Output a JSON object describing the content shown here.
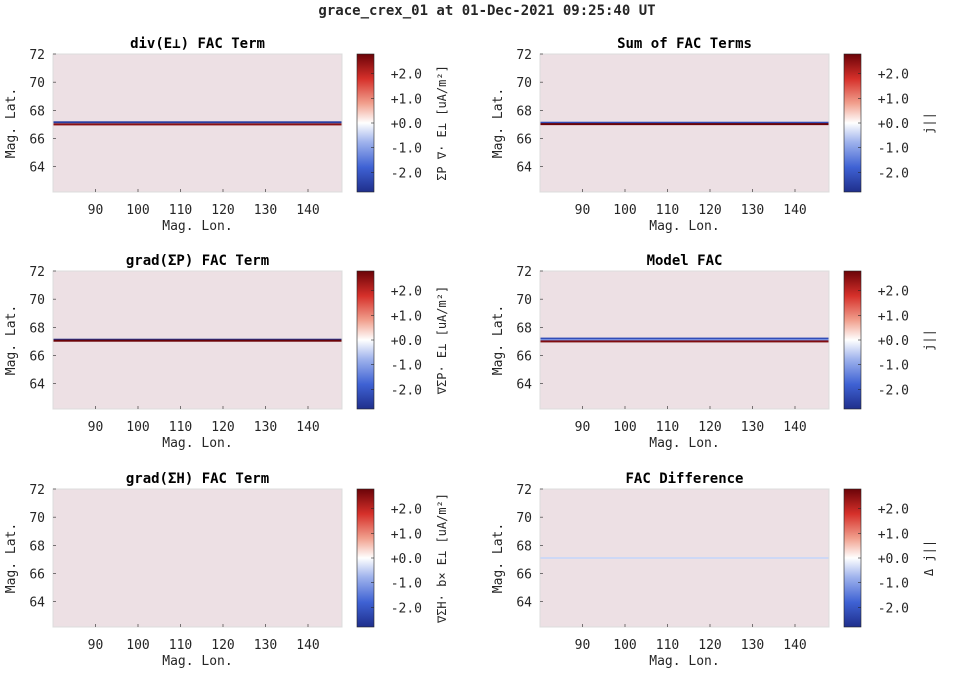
{
  "figure_title": "grace_crex_01 at 01-Dec-2021 09:25:40 UT",
  "colors": {
    "background_field": "#ede0e4",
    "colormap": [
      "#1f2f8c",
      "#3f62d4",
      "#9eb2ec",
      "#ffffff",
      "#f1a18f",
      "#d6302a",
      "#6b0308"
    ]
  },
  "chart_data": [
    {
      "type": "heatmap",
      "title": "div(E⊥) FAC Term",
      "xlabel": "Mag. Lon.",
      "ylabel": "Mag. Lat.",
      "xlim": [
        80,
        148
      ],
      "ylim": [
        62.2,
        72
      ],
      "xticks": [
        90,
        100,
        110,
        120,
        130,
        140
      ],
      "yticks": [
        64,
        66,
        68,
        70,
        72
      ],
      "colorbar": {
        "label": "ΣP ∇· E⊥ [uA/m²]",
        "ticks": [
          "+2.0",
          "+1.0",
          "+0.0",
          "-1.0",
          "-2.0"
        ],
        "tick_values": [
          2,
          1,
          0,
          -1,
          -2
        ],
        "clim": [
          -2.8,
          2.8
        ]
      },
      "bands": [
        {
          "lat": 67.15,
          "value": -2.5
        },
        {
          "lat": 67.0,
          "value": 2.5
        }
      ]
    },
    {
      "type": "heatmap",
      "title": "Sum of FAC Terms",
      "xlabel": "Mag. Lon.",
      "ylabel": "Mag. Lat.",
      "xlim": [
        80,
        148
      ],
      "ylim": [
        62.2,
        72
      ],
      "xticks": [
        90,
        100,
        110,
        120,
        130,
        140
      ],
      "yticks": [
        64,
        66,
        68,
        70,
        72
      ],
      "colorbar": {
        "label": "j||",
        "ticks": [
          "+2.0",
          "+1.0",
          "+0.0",
          "-1.0",
          "-2.0"
        ],
        "tick_values": [
          2,
          1,
          0,
          -1,
          -2
        ],
        "clim": [
          -2.8,
          2.8
        ]
      },
      "bands": [
        {
          "lat": 67.12,
          "value": -2.2
        },
        {
          "lat": 67.02,
          "value": 2.8
        }
      ]
    },
    {
      "type": "heatmap",
      "title": "grad(ΣP) FAC Term",
      "xlabel": "Mag. Lon.",
      "ylabel": "Mag. Lat.",
      "xlim": [
        80,
        148
      ],
      "ylim": [
        62.2,
        72
      ],
      "xticks": [
        90,
        100,
        110,
        120,
        130,
        140
      ],
      "yticks": [
        64,
        66,
        68,
        70,
        72
      ],
      "colorbar": {
        "label": "∇ΣP· E⊥ [uA/m²]",
        "ticks": [
          "+2.0",
          "+1.0",
          "+0.0",
          "-1.0",
          "-2.0"
        ],
        "tick_values": [
          2,
          1,
          0,
          -1,
          -2
        ],
        "clim": [
          -2.8,
          2.8
        ]
      },
      "bands": [
        {
          "lat": 67.12,
          "value": -2.8
        },
        {
          "lat": 67.05,
          "value": 2.8
        }
      ]
    },
    {
      "type": "heatmap",
      "title": "Model FAC",
      "xlabel": "Mag. Lon.",
      "ylabel": "Mag. Lat.",
      "xlim": [
        80,
        148
      ],
      "ylim": [
        62.2,
        72
      ],
      "xticks": [
        90,
        100,
        110,
        120,
        130,
        140
      ],
      "yticks": [
        64,
        66,
        68,
        70,
        72
      ],
      "colorbar": {
        "label": "j||",
        "ticks": [
          "+2.0",
          "+1.0",
          "+0.0",
          "-1.0",
          "-2.0"
        ],
        "tick_values": [
          2,
          1,
          0,
          -1,
          -2
        ],
        "clim": [
          -2.8,
          2.8
        ]
      },
      "bands": [
        {
          "lat": 67.2,
          "value": -2.2
        },
        {
          "lat": 67.1,
          "value": -1.2
        },
        {
          "lat": 67.0,
          "value": 2.6
        }
      ]
    },
    {
      "type": "heatmap",
      "title": "grad(ΣH) FAC Term",
      "xlabel": "Mag. Lon.",
      "ylabel": "Mag. Lat.",
      "xlim": [
        80,
        148
      ],
      "ylim": [
        62.2,
        72
      ],
      "xticks": [
        90,
        100,
        110,
        120,
        130,
        140
      ],
      "yticks": [
        64,
        66,
        68,
        70,
        72
      ],
      "colorbar": {
        "label": "∇ΣH· b× E⊥ [uA/m²]",
        "ticks": [
          "+2.0",
          "+1.0",
          "+0.0",
          "-1.0",
          "-2.0"
        ],
        "tick_values": [
          2,
          1,
          0,
          -1,
          -2
        ],
        "clim": [
          -2.8,
          2.8
        ]
      },
      "bands": []
    },
    {
      "type": "heatmap",
      "title": "FAC Difference",
      "xlabel": "Mag. Lon.",
      "ylabel": "Mag. Lat.",
      "xlim": [
        80,
        148
      ],
      "ylim": [
        62.2,
        72
      ],
      "xticks": [
        90,
        100,
        110,
        120,
        130,
        140
      ],
      "yticks": [
        64,
        66,
        68,
        70,
        72
      ],
      "colorbar": {
        "label": "Δ j||",
        "ticks": [
          "+2.0",
          "+1.0",
          "+0.0",
          "-1.0",
          "-2.0"
        ],
        "tick_values": [
          2,
          1,
          0,
          -1,
          -2
        ],
        "clim": [
          -2.8,
          2.8
        ]
      },
      "bands": [
        {
          "lat": 67.1,
          "value": -0.4
        }
      ]
    }
  ]
}
